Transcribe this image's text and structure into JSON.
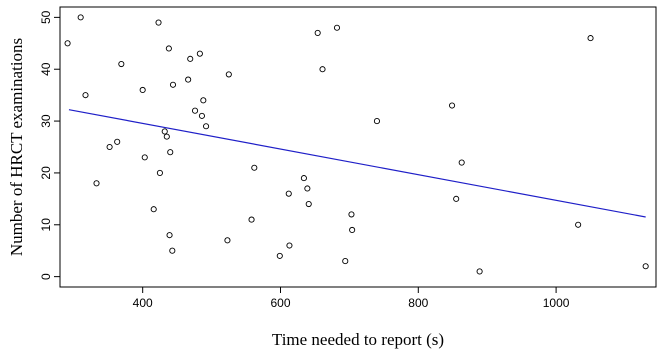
{
  "chart_data": {
    "type": "scatter",
    "xlabel": "Time needed to report (s)",
    "ylabel": "Number of HRCT examinations",
    "xlim": [
      280,
      1145
    ],
    "ylim": [
      -2,
      52
    ],
    "x_ticks": [
      400,
      600,
      800,
      1000
    ],
    "y_ticks": [
      0,
      10,
      20,
      30,
      40,
      50
    ],
    "grid": false,
    "legend": "none",
    "point_color": "#000000",
    "line_color": "#1f1fc8",
    "points": [
      {
        "x": 291,
        "y": 45
      },
      {
        "x": 310,
        "y": 50
      },
      {
        "x": 317,
        "y": 35
      },
      {
        "x": 333,
        "y": 18
      },
      {
        "x": 352,
        "y": 25
      },
      {
        "x": 363,
        "y": 26
      },
      {
        "x": 369,
        "y": 41
      },
      {
        "x": 400,
        "y": 36
      },
      {
        "x": 403,
        "y": 23
      },
      {
        "x": 416,
        "y": 13
      },
      {
        "x": 423,
        "y": 49
      },
      {
        "x": 425,
        "y": 20
      },
      {
        "x": 432,
        "y": 28
      },
      {
        "x": 435,
        "y": 27
      },
      {
        "x": 438,
        "y": 44
      },
      {
        "x": 439,
        "y": 8
      },
      {
        "x": 440,
        "y": 24
      },
      {
        "x": 443,
        "y": 5
      },
      {
        "x": 444,
        "y": 37
      },
      {
        "x": 466,
        "y": 38
      },
      {
        "x": 469,
        "y": 42
      },
      {
        "x": 476,
        "y": 32
      },
      {
        "x": 483,
        "y": 43
      },
      {
        "x": 486,
        "y": 31
      },
      {
        "x": 488,
        "y": 34
      },
      {
        "x": 492,
        "y": 29
      },
      {
        "x": 523,
        "y": 7
      },
      {
        "x": 525,
        "y": 39
      },
      {
        "x": 558,
        "y": 11
      },
      {
        "x": 562,
        "y": 21
      },
      {
        "x": 599,
        "y": 4
      },
      {
        "x": 612,
        "y": 16
      },
      {
        "x": 613,
        "y": 6
      },
      {
        "x": 634,
        "y": 19
      },
      {
        "x": 639,
        "y": 17
      },
      {
        "x": 641,
        "y": 14
      },
      {
        "x": 654,
        "y": 47
      },
      {
        "x": 661,
        "y": 40
      },
      {
        "x": 682,
        "y": 48
      },
      {
        "x": 694,
        "y": 3
      },
      {
        "x": 703,
        "y": 12
      },
      {
        "x": 704,
        "y": 9
      },
      {
        "x": 740,
        "y": 30
      },
      {
        "x": 849,
        "y": 33
      },
      {
        "x": 855,
        "y": 15
      },
      {
        "x": 863,
        "y": 22
      },
      {
        "x": 889,
        "y": 1
      },
      {
        "x": 1032,
        "y": 10
      },
      {
        "x": 1050,
        "y": 46
      },
      {
        "x": 1130,
        "y": 2
      }
    ],
    "regression_line": {
      "x": [
        293,
        1130
      ],
      "y": [
        32.2,
        11.5
      ]
    }
  }
}
